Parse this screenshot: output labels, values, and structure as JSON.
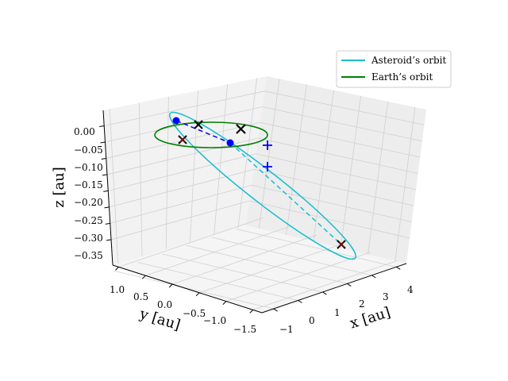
{
  "chart_data": {
    "type": "line",
    "projection": "3d",
    "grid": true,
    "legend_position": "top-right",
    "axes": {
      "x": {
        "label": "x [au]",
        "ticks": [
          "−1",
          "0",
          "1",
          "2",
          "3",
          "4"
        ],
        "range": [
          -1.2,
          4.6
        ]
      },
      "y": {
        "label": "y [au]",
        "ticks": [
          "1.0",
          "0.5",
          "0.0",
          "−0.5",
          "−1.0",
          "−1.5"
        ],
        "range": [
          -1.6,
          1.25
        ]
      },
      "z": {
        "label": "z [au]",
        "ticks": [
          "0.00",
          "−0.05",
          "−0.10",
          "−0.15",
          "−0.20",
          "−0.25",
          "−0.30",
          "−0.35"
        ],
        "range": [
          -0.38,
          0.02
        ]
      }
    },
    "series": [
      {
        "name": "Asteroid’s orbit",
        "color": "#17becf",
        "kind": "ellipse"
      },
      {
        "name": "Earth’s orbit",
        "color": "#008000",
        "kind": "ellipse"
      }
    ],
    "markers": [
      {
        "kind": "dot",
        "color": "#0000ff",
        "x": 0.0,
        "y": 0.0,
        "z": 0.0
      },
      {
        "kind": "dot",
        "color": "#0000ff",
        "x": -0.6,
        "y": 0.95,
        "z": 0.01
      },
      {
        "kind": "plus",
        "color": "#0000ff",
        "x": 1.0,
        "y": -1.05,
        "z": -0.02
      },
      {
        "kind": "plus",
        "color": "#0000ff",
        "x": 1.35,
        "y": -0.95,
        "z": -0.085
      },
      {
        "kind": "x",
        "color": "#000000",
        "x": -0.35,
        "y": 0.85,
        "z": 0.0
      },
      {
        "kind": "x",
        "color": "#000000",
        "x": 0.45,
        "y": 0.55,
        "z": 0.0
      },
      {
        "kind": "x",
        "color": "#000000",
        "x": -0.95,
        "y": 0.35,
        "z": 0.0
      },
      {
        "kind": "x",
        "color": "#000000",
        "x": 3.9,
        "y": -1.05,
        "z": -0.34
      },
      {
        "kind": "x",
        "color": "#8b0000",
        "x": -0.95,
        "y": 0.35,
        "z": 0.0
      },
      {
        "kind": "x",
        "color": "#8b0000",
        "x": 3.9,
        "y": -1.05,
        "z": -0.34
      }
    ],
    "dashed_lines": [
      {
        "color": "#0000ff",
        "from": [
          -0.6,
          0.95,
          0.01
        ],
        "to": [
          0.0,
          0.0,
          0.0
        ]
      },
      {
        "color": "#17becf",
        "from": [
          0.0,
          0.0,
          0.0
        ],
        "to": [
          3.9,
          -1.05,
          -0.34
        ]
      }
    ]
  }
}
